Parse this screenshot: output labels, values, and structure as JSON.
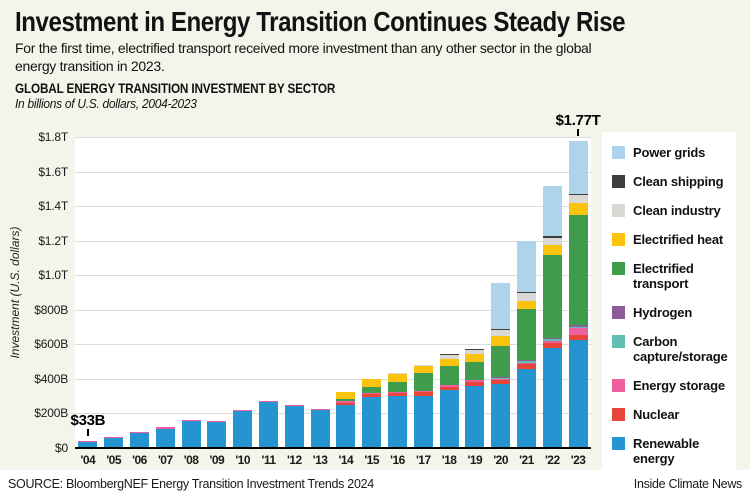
{
  "header": {
    "title": "Investment in Energy Transition Continues Steady Rise",
    "subtitle": "For the first time, electrified transport received more investment than any other sector in the global energy transition in 2023."
  },
  "chart_header": {
    "title": "GLOBAL ENERGY TRANSITION INVESTMENT BY SECTOR",
    "subtitle": "In billions of U.S. dollars, 2004-2023"
  },
  "footer": {
    "source": "SOURCE: BloombergNEF Energy Transition Investment Trends 2024",
    "credit": "Inside Climate News"
  },
  "colors": {
    "page_background": "#f5f4ea",
    "plot_background": "#ffffff",
    "gridline": "#dcdcd8",
    "axis_line": "#000000",
    "legend_background": "#ffffff"
  },
  "chart_data": {
    "type": "bar",
    "stacked": true,
    "title": "GLOBAL ENERGY TRANSITION INVESTMENT BY SECTOR",
    "units": "billions of U.S. dollars",
    "ylabel": "Investment (U.S. dollars)",
    "ylim": [
      0,
      1800
    ],
    "ytick_step": 200,
    "ytick_labels": [
      "$0",
      "$200B",
      "$400B",
      "$600B",
      "$800B",
      "$1.0T",
      "$1.2T",
      "$1.4T",
      "$1.6T",
      "$1.8T"
    ],
    "grid": true,
    "legend_position": "right",
    "legend_note": "Legend lists series top-to-bottom in reverse stacking order",
    "categories": [
      "'04",
      "'05",
      "'06",
      "'07",
      "'08",
      "'09",
      "'10",
      "'11",
      "'12",
      "'13",
      "'14",
      "'15",
      "'16",
      "'17",
      "'18",
      "'19",
      "'20",
      "'21",
      "'22",
      "'23"
    ],
    "series": [
      {
        "name": "Renewable energy",
        "color": "#2595d2",
        "values": [
          32,
          57,
          86,
          112,
          156,
          151,
          215,
          268,
          243,
          219,
          248,
          295,
          299,
          303,
          334,
          360,
          368,
          460,
          577,
          623
        ]
      },
      {
        "name": "Nuclear",
        "color": "#e8453a",
        "values": [
          0,
          0,
          0,
          0,
          0,
          0,
          0,
          0,
          0,
          0,
          15,
          19,
          19,
          19,
          21,
          25,
          25,
          28,
          30,
          33
        ]
      },
      {
        "name": "Energy storage",
        "color": "#ed5f9e",
        "values": [
          1,
          2,
          2,
          3,
          4,
          4,
          4,
          5,
          5,
          6,
          2,
          2,
          2,
          2,
          2,
          2,
          5,
          7,
          15,
          36
        ]
      },
      {
        "name": "Carbon capture/storage",
        "color": "#5fc0b2",
        "values": [
          0,
          0,
          0,
          0,
          0,
          0,
          0,
          0,
          0,
          0,
          0,
          0,
          0,
          0,
          0,
          0,
          2,
          2,
          5,
          11
        ]
      },
      {
        "name": "Hydrogen",
        "color": "#8b5d98",
        "values": [
          0,
          0,
          0,
          0,
          0,
          0,
          0,
          0,
          0,
          0,
          0,
          0,
          0,
          0,
          0,
          0,
          1,
          3,
          4,
          10
        ]
      },
      {
        "name": "Electrified transport",
        "color": "#3f9c4d",
        "values": [
          0,
          0,
          0,
          0,
          0,
          0,
          0,
          0,
          0,
          0,
          13,
          33,
          57,
          107,
          112,
          107,
          176,
          297,
          480,
          634
        ]
      },
      {
        "name": "Electrified heat",
        "color": "#fcc30d",
        "values": [
          0,
          0,
          0,
          0,
          0,
          0,
          0,
          0,
          0,
          0,
          42,
          47,
          47,
          38,
          42,
          44,
          57,
          47,
          57,
          70
        ]
      },
      {
        "name": "Clean industry",
        "color": "#d9d8d4",
        "values": [
          0,
          0,
          0,
          0,
          0,
          0,
          0,
          0,
          0,
          0,
          0,
          0,
          8,
          8,
          21,
          25,
          38,
          43,
          45,
          45
        ]
      },
      {
        "name": "Clean shipping",
        "color": "#3d3d3d",
        "values": [
          0,
          0,
          0,
          0,
          0,
          0,
          0,
          0,
          0,
          0,
          0,
          0,
          0,
          0,
          2,
          7,
          2,
          2,
          3,
          4
        ]
      },
      {
        "name": "Power grids",
        "color": "#aed4ec",
        "values": [
          0,
          0,
          0,
          0,
          0,
          0,
          0,
          0,
          0,
          0,
          0,
          0,
          0,
          0,
          0,
          0,
          266,
          298,
          292,
          310
        ]
      }
    ],
    "annotations": [
      {
        "category": "'04",
        "label": "$33B"
      },
      {
        "category": "'23",
        "label": "$1.77T"
      }
    ]
  }
}
